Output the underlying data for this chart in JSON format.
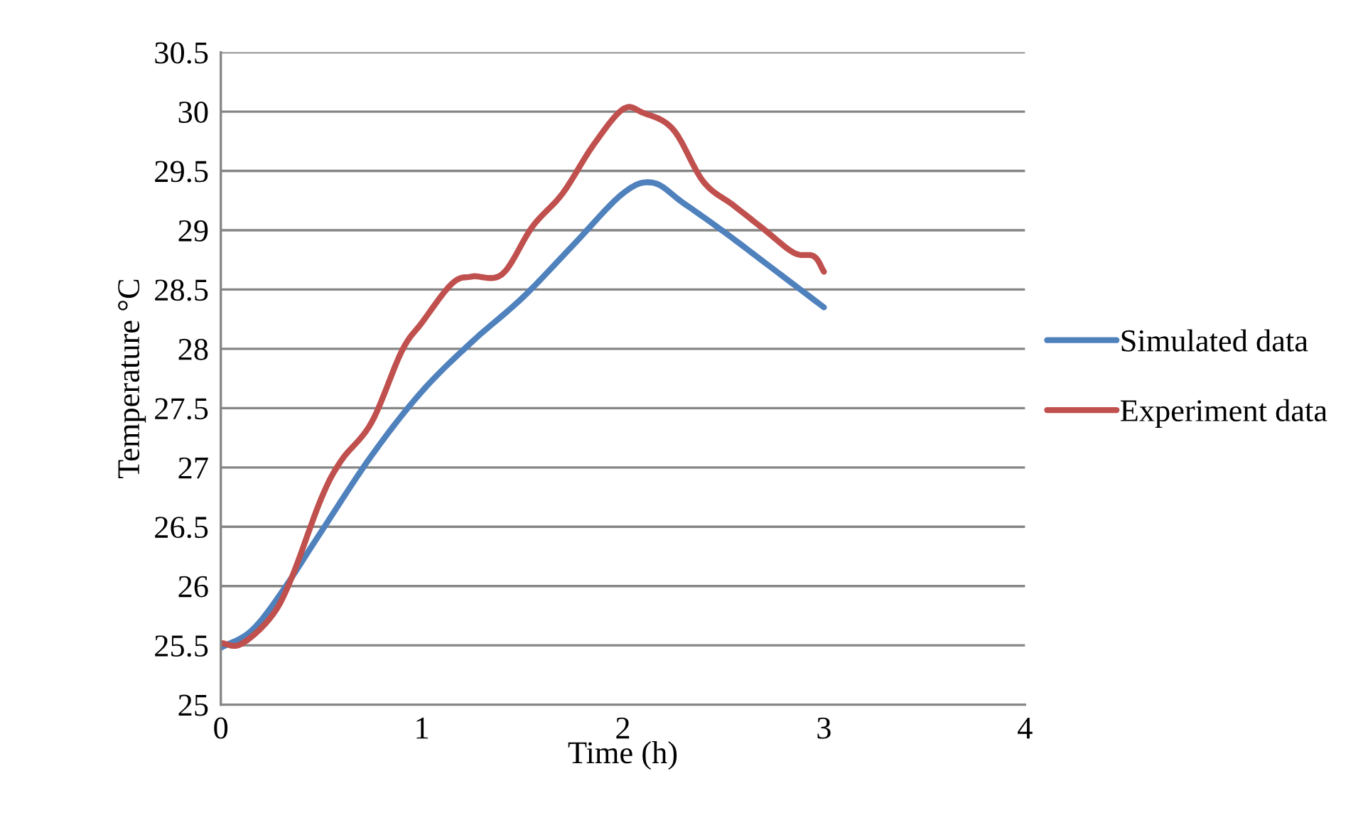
{
  "chart_data": {
    "type": "line",
    "xlabel": "Time (h)",
    "ylabel": "Temperature °C",
    "xlim": [
      0,
      4
    ],
    "xticks": [
      0,
      1,
      2,
      3,
      4
    ],
    "ylim": [
      25,
      30.5
    ],
    "yticks": [
      25,
      25.5,
      26,
      26.5,
      27,
      27.5,
      28,
      28.5,
      29,
      29.5,
      30,
      30.5
    ],
    "grid": "y",
    "legend": "right",
    "marker": "none",
    "line_style": "solid",
    "series": [
      {
        "name": "Simulated data",
        "color": "#4f81bd",
        "x": [
          0,
          0.15,
          0.3,
          0.5,
          0.75,
          1.0,
          1.25,
          1.5,
          1.75,
          2.0,
          2.15,
          2.3,
          2.5,
          2.75,
          3.0
        ],
        "values": [
          25.48,
          25.62,
          25.94,
          26.46,
          27.1,
          27.64,
          28.06,
          28.43,
          28.87,
          29.31,
          29.4,
          29.23,
          28.99,
          28.67,
          28.35
        ]
      },
      {
        "name": "Experiment data",
        "color": "#c0504d",
        "x": [
          0,
          0.1,
          0.25,
          0.35,
          0.5,
          0.6,
          0.75,
          0.9,
          1.0,
          1.15,
          1.25,
          1.4,
          1.55,
          1.7,
          1.85,
          2.0,
          2.1,
          2.25,
          2.4,
          2.55,
          2.7,
          2.85,
          2.95,
          3.0
        ],
        "values": [
          25.52,
          25.51,
          25.74,
          26.06,
          26.74,
          27.06,
          27.38,
          27.98,
          28.22,
          28.55,
          28.61,
          28.63,
          29.03,
          29.31,
          29.71,
          30.02,
          29.99,
          29.85,
          29.41,
          29.21,
          29.01,
          28.81,
          28.78,
          28.65
        ]
      }
    ]
  }
}
